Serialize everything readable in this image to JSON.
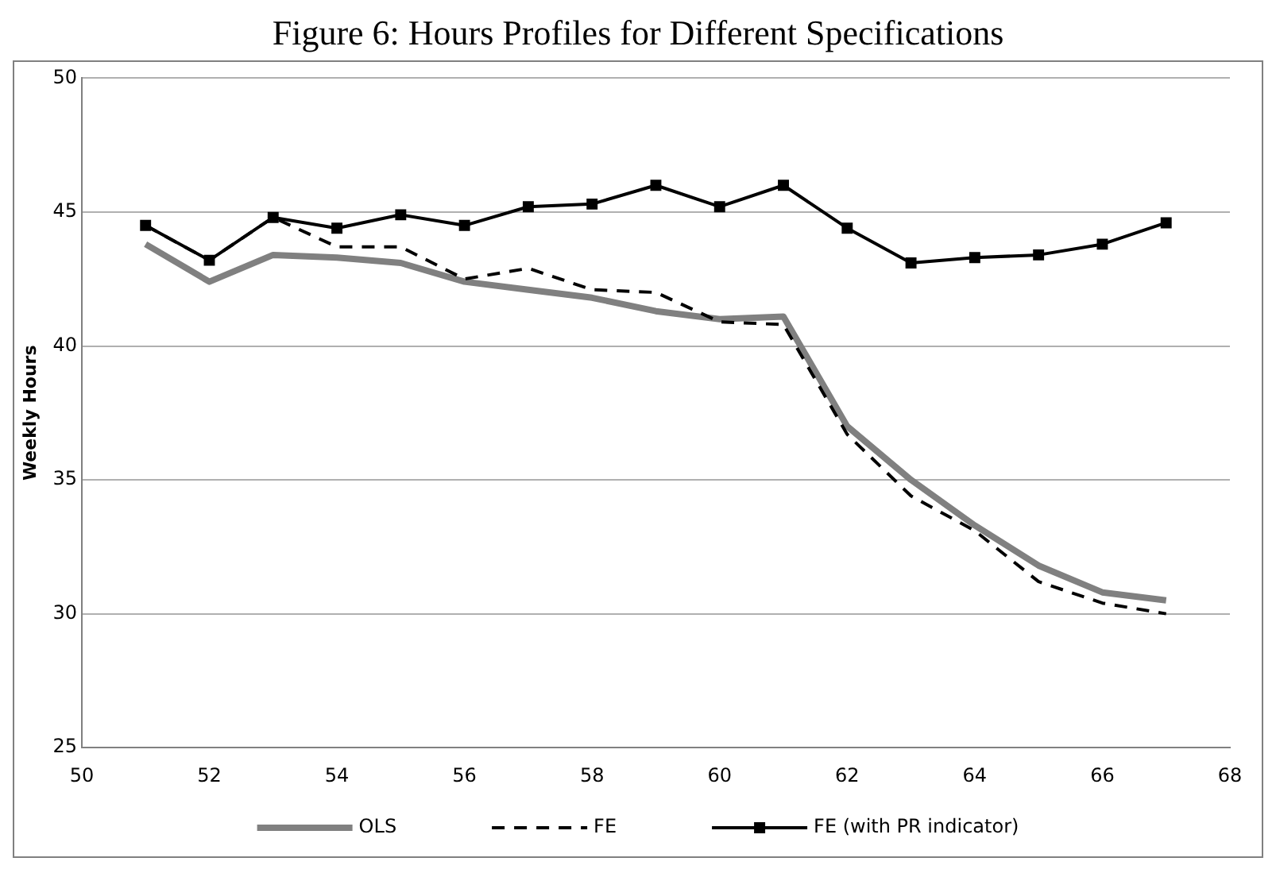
{
  "chart_data": {
    "type": "line",
    "title": "Figure 6: Hours Profiles for Different Specifications",
    "ylabel": "Weekly Hours",
    "x": [
      51,
      52,
      53,
      54,
      55,
      56,
      57,
      58,
      59,
      60,
      61,
      62,
      63,
      64,
      65,
      66,
      67
    ],
    "series": [
      {
        "name": "OLS",
        "color": "#808080",
        "marker": "none",
        "line_style": "solid",
        "values": [
          43.8,
          42.4,
          43.4,
          43.3,
          43.1,
          42.4,
          42.1,
          41.8,
          41.3,
          41.0,
          41.1,
          37.0,
          35.0,
          33.3,
          31.8,
          30.8,
          30.5
        ]
      },
      {
        "name": "FE",
        "color": "#000000",
        "marker": "none",
        "line_style": "dashed",
        "values": [
          44.5,
          43.2,
          44.8,
          43.7,
          43.7,
          42.5,
          42.9,
          42.1,
          42.0,
          40.9,
          40.8,
          36.7,
          34.4,
          33.1,
          31.2,
          30.4,
          30.0
        ]
      },
      {
        "name": "FE (with PR indicator)",
        "color": "#000000",
        "marker": "square",
        "line_style": "solid",
        "values": [
          44.5,
          43.2,
          44.8,
          44.4,
          44.9,
          44.5,
          45.2,
          45.3,
          46.0,
          45.2,
          46.0,
          44.4,
          43.1,
          43.3,
          43.4,
          43.8,
          44.6
        ]
      }
    ],
    "xlim": [
      50,
      68
    ],
    "xticks": [
      50,
      52,
      54,
      56,
      58,
      60,
      62,
      64,
      66,
      68
    ],
    "ylim": [
      25,
      50
    ],
    "yticks": [
      25,
      30,
      35,
      40,
      45,
      50
    ],
    "grid": "y",
    "legend": "bottom"
  }
}
